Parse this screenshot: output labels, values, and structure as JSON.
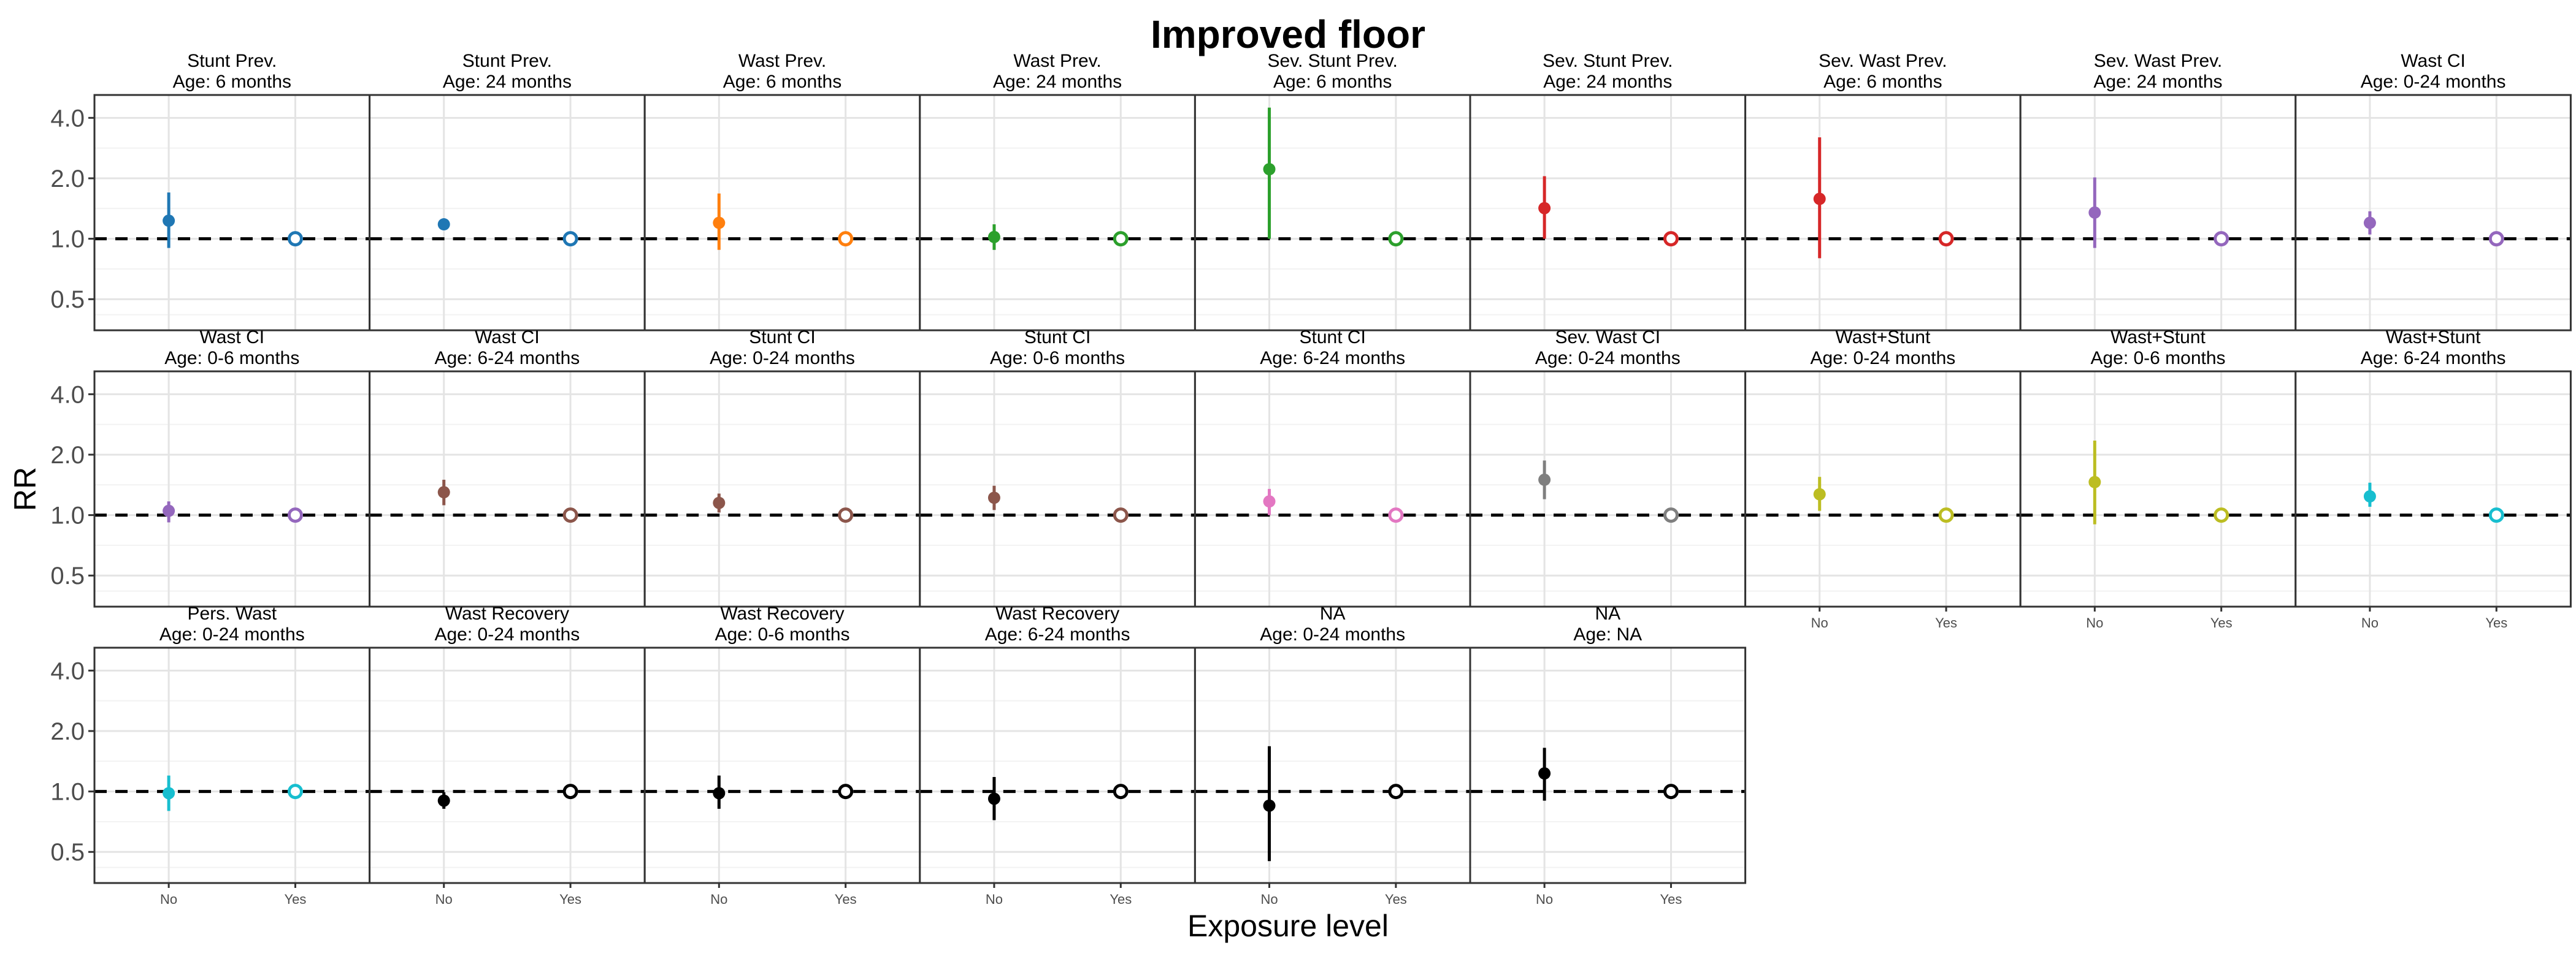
{
  "chart_data": {
    "type": "scatter",
    "title": "Improved floor",
    "xlabel": "Exposure level",
    "ylabel": "RR",
    "y_scale": "log",
    "ylim": [
      0.35,
      5.2
    ],
    "y_ticks": [
      0.5,
      1.0,
      2.0,
      4.0
    ],
    "y_tick_labels": [
      "0.5",
      "1.0",
      "2.0",
      "4.0"
    ],
    "categories": [
      "No",
      "Yes"
    ],
    "reference_line": 1.0,
    "grid": true,
    "legend": "none",
    "panels": [
      {
        "title_line1": "Stunt Prev.",
        "title_line2": "Age: 6 months",
        "color": "#1f77b4",
        "estimate": 1.23,
        "ci_lower": 0.9,
        "ci_upper": 1.7,
        "reference": 1.0
      },
      {
        "title_line1": "Stunt Prev.",
        "title_line2": "Age: 24 months",
        "color": "#1f77b4",
        "estimate": 1.18,
        "ci_lower": 1.12,
        "ci_upper": 1.26,
        "reference": 1.0
      },
      {
        "title_line1": "Wast Prev.",
        "title_line2": "Age: 6 months",
        "color": "#ff7f0e",
        "estimate": 1.2,
        "ci_lower": 0.88,
        "ci_upper": 1.68,
        "reference": 1.0
      },
      {
        "title_line1": "Wast Prev.",
        "title_line2": "Age: 24 months",
        "color": "#2ca02c",
        "estimate": 1.02,
        "ci_lower": 0.88,
        "ci_upper": 1.18,
        "reference": 1.0
      },
      {
        "title_line1": "Sev. Stunt Prev.",
        "title_line2": "Age: 6 months",
        "color": "#2ca02c",
        "estimate": 2.22,
        "ci_lower": 1.0,
        "ci_upper": 4.5,
        "reference": 1.0
      },
      {
        "title_line1": "Sev. Stunt Prev.",
        "title_line2": "Age: 24 months",
        "color": "#d62728",
        "estimate": 1.42,
        "ci_lower": 1.0,
        "ci_upper": 2.05,
        "reference": 1.0
      },
      {
        "title_line1": "Sev. Wast Prev.",
        "title_line2": "Age: 6 months",
        "color": "#d62728",
        "estimate": 1.58,
        "ci_lower": 0.8,
        "ci_upper": 3.2,
        "reference": 1.0
      },
      {
        "title_line1": "Sev. Wast Prev.",
        "title_line2": "Age: 24 months",
        "color": "#9467bd",
        "estimate": 1.35,
        "ci_lower": 0.9,
        "ci_upper": 2.02,
        "reference": 1.0
      },
      {
        "title_line1": "Wast CI",
        "title_line2": "Age: 0-24 months",
        "color": "#9467bd",
        "estimate": 1.2,
        "ci_lower": 1.05,
        "ci_upper": 1.37,
        "reference": 1.0
      },
      {
        "title_line1": "Wast CI",
        "title_line2": "Age: 0-6 months",
        "color": "#9467bd",
        "estimate": 1.05,
        "ci_lower": 0.92,
        "ci_upper": 1.17,
        "reference": 1.0
      },
      {
        "title_line1": "Wast CI",
        "title_line2": "Age: 6-24 months",
        "color": "#8c564b",
        "estimate": 1.3,
        "ci_lower": 1.12,
        "ci_upper": 1.5,
        "reference": 1.0
      },
      {
        "title_line1": "Stunt CI",
        "title_line2": "Age: 0-24 months",
        "color": "#8c564b",
        "estimate": 1.15,
        "ci_lower": 1.03,
        "ci_upper": 1.28,
        "reference": 1.0
      },
      {
        "title_line1": "Stunt CI",
        "title_line2": "Age: 0-6 months",
        "color": "#8c564b",
        "estimate": 1.22,
        "ci_lower": 1.06,
        "ci_upper": 1.4,
        "reference": 1.0
      },
      {
        "title_line1": "Stunt CI",
        "title_line2": "Age: 6-24 months",
        "color": "#e377c2",
        "estimate": 1.17,
        "ci_lower": 1.0,
        "ci_upper": 1.35,
        "reference": 1.0
      },
      {
        "title_line1": "Sev. Wast CI",
        "title_line2": "Age: 0-24 months",
        "color": "#7f7f7f",
        "estimate": 1.5,
        "ci_lower": 1.2,
        "ci_upper": 1.87,
        "reference": 1.0
      },
      {
        "title_line1": "Wast+Stunt",
        "title_line2": "Age: 0-24 months",
        "color": "#bcbd22",
        "estimate": 1.27,
        "ci_lower": 1.05,
        "ci_upper": 1.55,
        "reference": 1.0
      },
      {
        "title_line1": "Wast+Stunt",
        "title_line2": "Age: 0-6 months",
        "color": "#bcbd22",
        "estimate": 1.46,
        "ci_lower": 0.9,
        "ci_upper": 2.35,
        "reference": 1.0
      },
      {
        "title_line1": "Wast+Stunt",
        "title_line2": "Age: 6-24 months",
        "color": "#17becf",
        "estimate": 1.24,
        "ci_lower": 1.1,
        "ci_upper": 1.45,
        "reference": 1.0
      },
      {
        "title_line1": "Pers. Wast",
        "title_line2": "Age: 0-24 months",
        "color": "#17becf",
        "estimate": 0.98,
        "ci_lower": 0.8,
        "ci_upper": 1.2,
        "reference": 1.0
      },
      {
        "title_line1": "Wast Recovery",
        "title_line2": "Age: 0-24 months",
        "color": "#000000",
        "estimate": 0.9,
        "ci_lower": 0.82,
        "ci_upper": 0.99,
        "reference": 1.0
      },
      {
        "title_line1": "Wast Recovery",
        "title_line2": "Age: 0-6 months",
        "color": "#000000",
        "estimate": 0.98,
        "ci_lower": 0.82,
        "ci_upper": 1.2,
        "reference": 1.0
      },
      {
        "title_line1": "Wast Recovery",
        "title_line2": "Age: 6-24 months",
        "color": "#000000",
        "estimate": 0.92,
        "ci_lower": 0.72,
        "ci_upper": 1.18,
        "reference": 1.0
      },
      {
        "title_line1": "NA",
        "title_line2": "Age: 0-24 months",
        "color": "#000000",
        "estimate": 0.85,
        "ci_lower": 0.45,
        "ci_upper": 1.68,
        "reference": 1.0
      },
      {
        "title_line1": "NA",
        "title_line2": "Age: NA",
        "color": "#000000",
        "estimate": 1.23,
        "ci_lower": 0.9,
        "ci_upper": 1.65,
        "reference": 1.0
      }
    ]
  }
}
